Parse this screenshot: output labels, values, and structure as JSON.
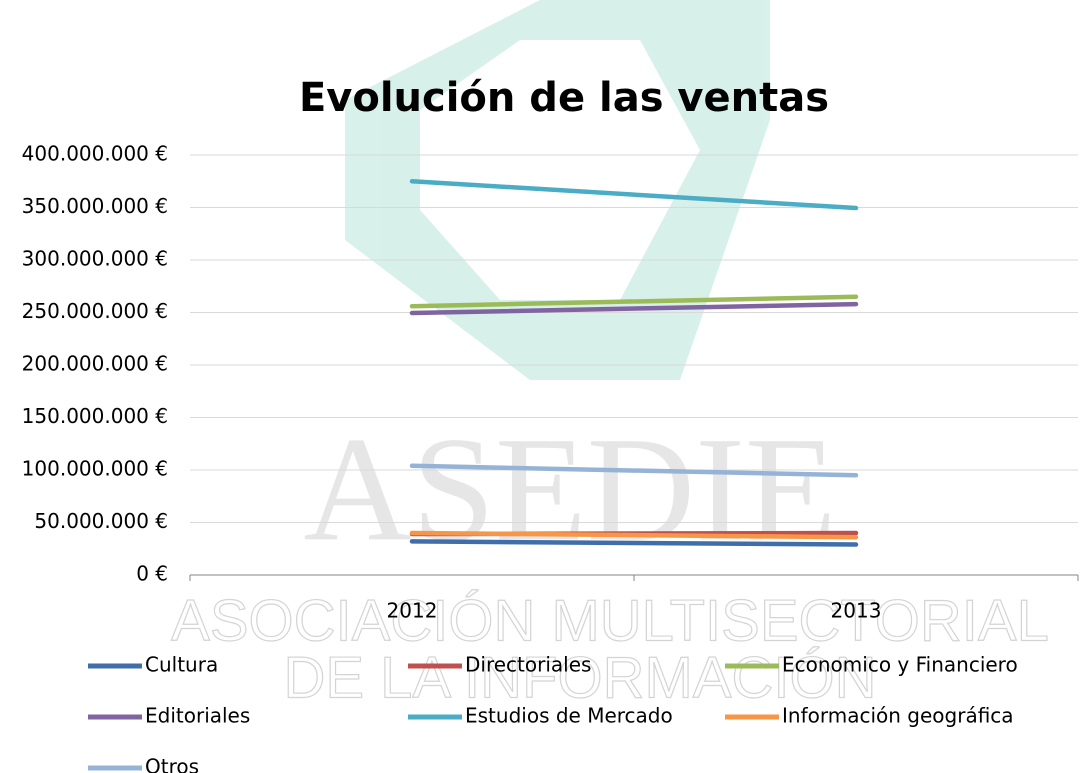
{
  "chart_data": {
    "type": "line",
    "title": "Evolución de las ventas",
    "categories": [
      "2012",
      "2013"
    ],
    "series": [
      {
        "name": "Cultura",
        "color": "#3f6eaa",
        "values": [
          32000000,
          29000000
        ]
      },
      {
        "name": "Directoriales",
        "color": "#c0504d",
        "values": [
          39000000,
          40000000
        ]
      },
      {
        "name": "Economico y Financiero",
        "color": "#9bbb59",
        "values": [
          256000000,
          265000000
        ]
      },
      {
        "name": "Editoriales",
        "color": "#8064a2",
        "values": [
          249500000,
          258000000
        ]
      },
      {
        "name": "Estudios de Mercado",
        "color": "#4bacc6",
        "values": [
          375000000,
          349500000
        ]
      },
      {
        "name": "Información geográfica",
        "color": "#f79646",
        "values": [
          40000000,
          36000000
        ]
      },
      {
        "name": "Otros",
        "color": "#95b3d7",
        "values": [
          104000000,
          95000000
        ]
      }
    ],
    "ylim": [
      0,
      400000000
    ],
    "yticks": [
      {
        "value": 0,
        "label": "0 €"
      },
      {
        "value": 50000000,
        "label": "50.000.000 €"
      },
      {
        "value": 100000000,
        "label": "100.000.000 €"
      },
      {
        "value": 150000000,
        "label": "150.000.000 €"
      },
      {
        "value": 200000000,
        "label": "200.000.000 €"
      },
      {
        "value": 250000000,
        "label": "250.000.000 €"
      },
      {
        "value": 300000000,
        "label": "300.000.000 €"
      },
      {
        "value": 350000000,
        "label": "350.000.000 €"
      },
      {
        "value": 400000000,
        "label": "400.000.000 €"
      }
    ],
    "grid": true,
    "legend": "bottom"
  },
  "watermark": {
    "name": "ASEDIE",
    "lines": [
      "ASOCIACIÓN MULTISECTORIAL",
      "DE LA INFORMACIÓN"
    ]
  }
}
